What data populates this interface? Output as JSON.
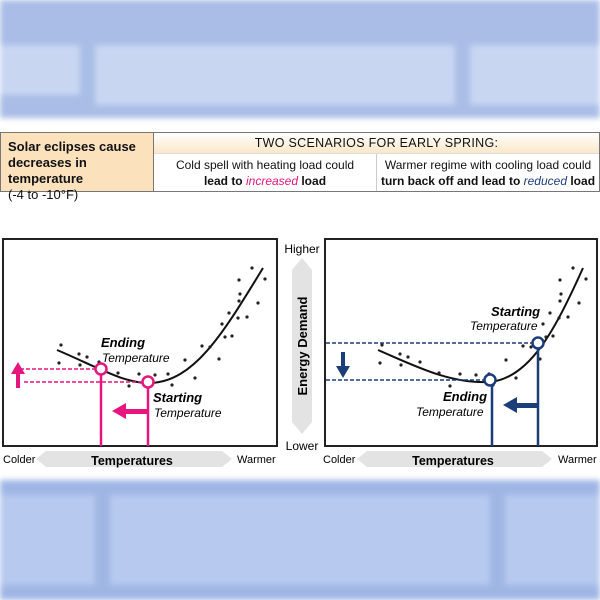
{
  "table": {
    "left_title": "Solar eclipses cause decreases in temperature",
    "left_sub": "(-4 to -10°F)",
    "header": "TWO SCENARIOS FOR EARLY SPRING:",
    "scenario1": {
      "line1": "Cold spell with heating load could",
      "pre": "lead to ",
      "em": "increased",
      "post": "  load"
    },
    "scenario2": {
      "line1": "Warmer regime with cooling load could",
      "pre": "turn back off and lead to ",
      "em": "reduced",
      "post": " load"
    }
  },
  "left_chart": {
    "ending_bold": "Ending",
    "ending_sub": "Temperature",
    "starting_bold": "Starting",
    "starting_sub": "Temperature",
    "accent": "#e6157f"
  },
  "right_chart": {
    "ending_bold": "Ending",
    "ending_sub": "Temperature",
    "starting_bold": "Starting",
    "starting_sub": "Temperature",
    "accent": "#1b3d7a"
  },
  "axes": {
    "x_label": "Temperatures",
    "x_low": "Colder",
    "x_high": "Warmer",
    "y_label": "Energy Demand",
    "y_high": "Higher",
    "y_low": "Lower"
  }
}
